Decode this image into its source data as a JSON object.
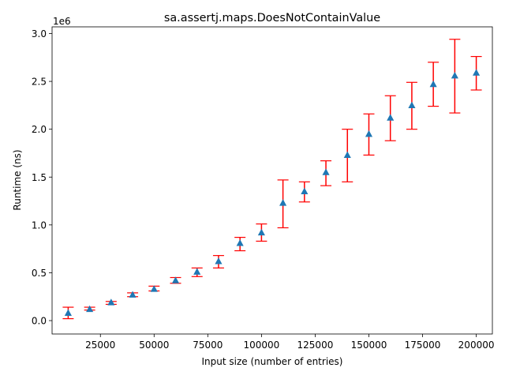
{
  "chart_data": {
    "type": "scatter",
    "title": "sa.assertj.maps.DoesNotContainValue",
    "xlabel": "Input size (number of entries)",
    "ylabel": "Runtime (ns)",
    "y_offset_label": "1e6",
    "xlim": [
      2500,
      207500
    ],
    "ylim": [
      -0.14,
      3.07
    ],
    "y_scale_factor": 1000000,
    "x_ticks": [
      25000,
      50000,
      75000,
      100000,
      125000,
      150000,
      175000,
      200000
    ],
    "x_tick_labels": [
      "25000",
      "50000",
      "75000",
      "100000",
      "125000",
      "150000",
      "175000",
      "200000"
    ],
    "y_ticks": [
      0.0,
      0.5,
      1.0,
      1.5,
      2.0,
      2.5,
      3.0
    ],
    "y_tick_labels": [
      "0.0",
      "0.5",
      "1.0",
      "1.5",
      "2.0",
      "2.5",
      "3.0"
    ],
    "grid": false,
    "marker": "triangle",
    "marker_color": "#1f77b4",
    "errorbar_color": "#ff0000",
    "points": [
      {
        "x": 10000,
        "y": 0.08,
        "ymin": 0.02,
        "ymax": 0.14
      },
      {
        "x": 20000,
        "y": 0.12,
        "ymin": 0.11,
        "ymax": 0.14
      },
      {
        "x": 30000,
        "y": 0.19,
        "ymin": 0.17,
        "ymax": 0.2
      },
      {
        "x": 40000,
        "y": 0.27,
        "ymin": 0.25,
        "ymax": 0.29
      },
      {
        "x": 50000,
        "y": 0.33,
        "ymin": 0.31,
        "ymax": 0.36
      },
      {
        "x": 60000,
        "y": 0.42,
        "ymin": 0.39,
        "ymax": 0.45
      },
      {
        "x": 70000,
        "y": 0.51,
        "ymin": 0.46,
        "ymax": 0.55
      },
      {
        "x": 80000,
        "y": 0.62,
        "ymin": 0.55,
        "ymax": 0.68
      },
      {
        "x": 90000,
        "y": 0.81,
        "ymin": 0.73,
        "ymax": 0.87
      },
      {
        "x": 100000,
        "y": 0.92,
        "ymin": 0.83,
        "ymax": 1.01
      },
      {
        "x": 110000,
        "y": 1.23,
        "ymin": 0.97,
        "ymax": 1.47
      },
      {
        "x": 120000,
        "y": 1.35,
        "ymin": 1.24,
        "ymax": 1.45
      },
      {
        "x": 130000,
        "y": 1.55,
        "ymin": 1.41,
        "ymax": 1.67
      },
      {
        "x": 140000,
        "y": 1.73,
        "ymin": 1.45,
        "ymax": 2.0
      },
      {
        "x": 150000,
        "y": 1.95,
        "ymin": 1.73,
        "ymax": 2.16
      },
      {
        "x": 160000,
        "y": 2.12,
        "ymin": 1.88,
        "ymax": 2.35
      },
      {
        "x": 170000,
        "y": 2.25,
        "ymin": 2.0,
        "ymax": 2.49
      },
      {
        "x": 180000,
        "y": 2.47,
        "ymin": 2.24,
        "ymax": 2.7
      },
      {
        "x": 190000,
        "y": 2.56,
        "ymin": 2.17,
        "ymax": 2.94
      },
      {
        "x": 200000,
        "y": 2.59,
        "ymin": 2.41,
        "ymax": 2.76
      }
    ]
  }
}
